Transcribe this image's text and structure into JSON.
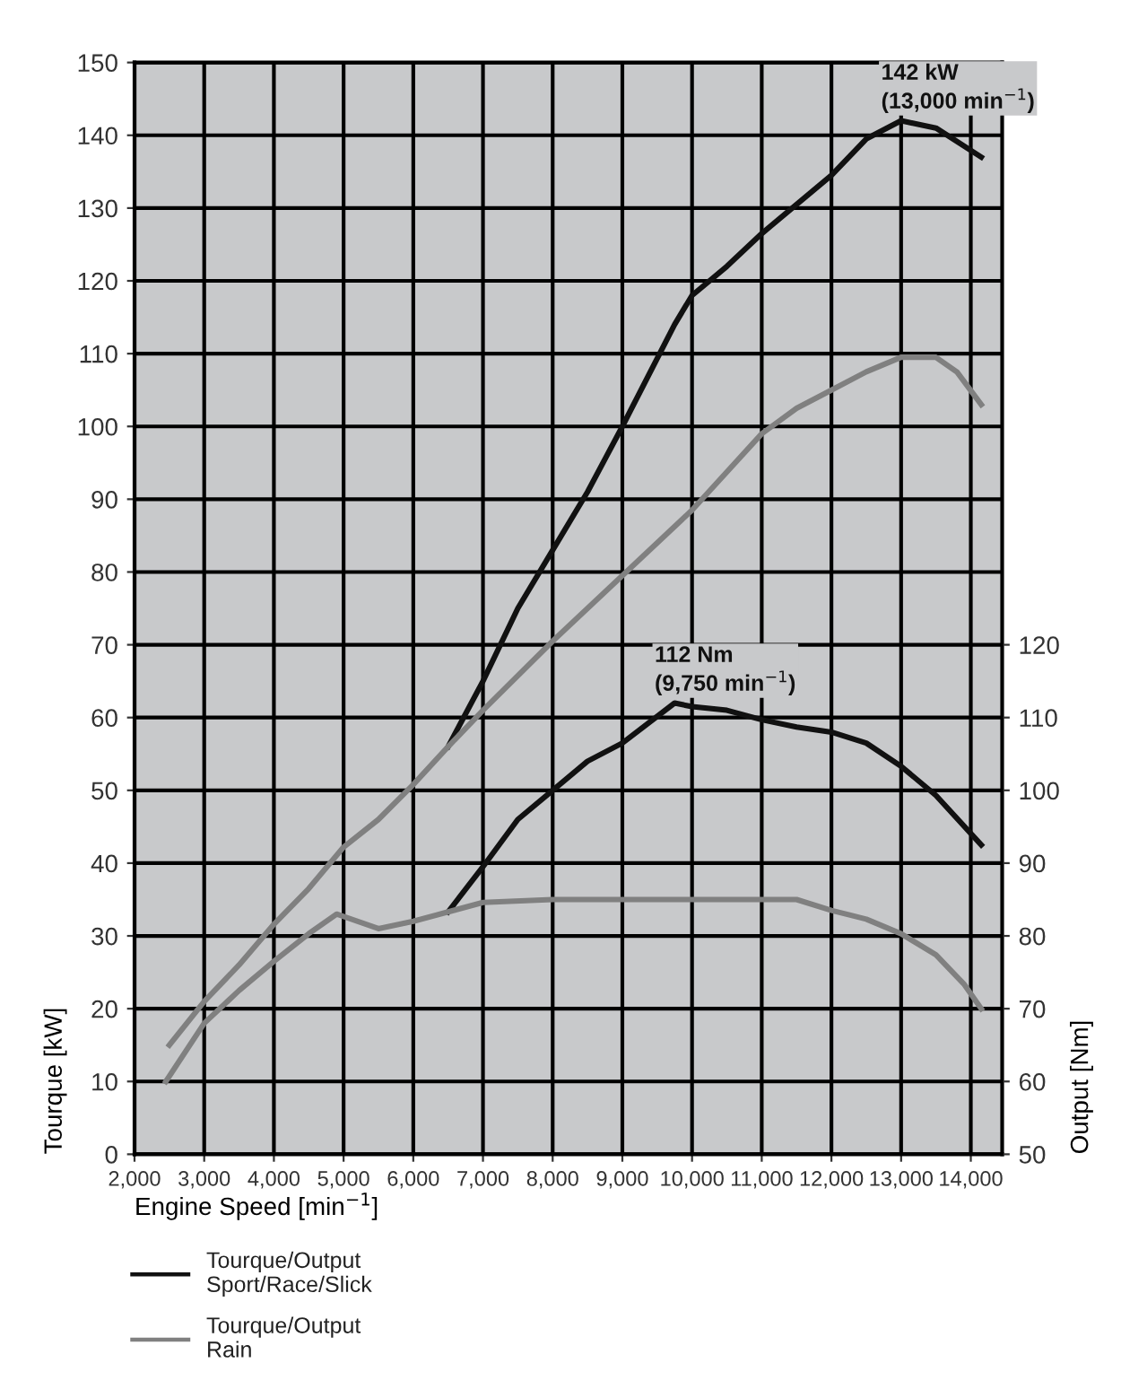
{
  "chart_data": {
    "type": "line",
    "xlabel": "Engine Speed [min$^{−1}$]",
    "ylabel": "Tourque [kW]",
    "y2label": "Output [Nm]",
    "xlim": [
      2000,
      14450
    ],
    "xticks": [
      {
        "value": 2000,
        "label": "2,000"
      },
      {
        "value": 3000,
        "label": "3,000"
      },
      {
        "value": 4000,
        "label": "4,000"
      },
      {
        "value": 5000,
        "label": "5,000"
      },
      {
        "value": 6000,
        "label": "6,000"
      },
      {
        "value": 7000,
        "label": "7,000"
      },
      {
        "value": 8000,
        "label": "8,000"
      },
      {
        "value": 9000,
        "label": "9,000"
      },
      {
        "value": 10000,
        "label": "10,000"
      },
      {
        "value": 11000,
        "label": "11,000"
      },
      {
        "value": 12000,
        "label": "12,000"
      },
      {
        "value": 13000,
        "label": "13,000"
      },
      {
        "value": 14000,
        "label": "14,000"
      }
    ],
    "ylim": [
      0,
      150
    ],
    "yticks": [
      0,
      10,
      20,
      30,
      40,
      50,
      60,
      70,
      80,
      90,
      100,
      110,
      120,
      130,
      140,
      150
    ],
    "y2lim": [
      50,
      200
    ],
    "y2ticks": [
      50,
      60,
      70,
      80,
      90,
      100,
      110,
      120
    ],
    "grid": true,
    "legend": "bottom",
    "line_style": "solid",
    "marker": "none",
    "series": [
      {
        "name": "Tourque/Output\nSport/Race/Slick",
        "color": "#111111",
        "x": [
          6500,
          7000,
          7500,
          8000,
          8500,
          9000,
          9750,
          10000,
          10500,
          11000,
          12000,
          12500,
          13000,
          13500,
          14150
        ],
        "values": [
          56,
          65,
          75,
          83,
          91,
          100,
          114,
          118,
          122,
          126.5,
          134.5,
          139.5,
          142,
          141,
          137
        ]
      },
      {
        "name": "Tourque/Output\nRain",
        "color": "#808080",
        "x": [
          2500,
          3000,
          3500,
          4000,
          4500,
          5000,
          5500,
          6000,
          6500,
          7000,
          8000,
          9000,
          10000,
          11000,
          11500,
          12000,
          12500,
          13000,
          13500,
          13800,
          14150
        ],
        "values": [
          15,
          21,
          26,
          31.6,
          36.5,
          42.2,
          46,
          50.8,
          56,
          61,
          70.5,
          79.5,
          88.5,
          99,
          102.5,
          105,
          107.5,
          109.5,
          109.5,
          107.5,
          103
        ]
      },
      {
        "color": "#111111",
        "axis": "y2",
        "x": [
          6500,
          7000,
          7500,
          8000,
          8500,
          9000,
          9750,
          10000,
          10500,
          11000,
          11500,
          12000,
          12500,
          13000,
          13500,
          14150
        ],
        "values": [
          83.3,
          89.5,
          96,
          100,
          104,
          106.5,
          112,
          111.5,
          111,
          109.7,
          108.7,
          108,
          106.5,
          103.3,
          99.3,
          92.5
        ]
      },
      {
        "color": "#808080",
        "axis": "y2",
        "x": [
          2450,
          3000,
          3500,
          4000,
          4500,
          4900,
          5500,
          6000,
          6500,
          7000,
          8000,
          9000,
          10000,
          11000,
          11500,
          12000,
          12500,
          13000,
          13500,
          13900,
          14150
        ],
        "values": [
          60,
          68,
          72.5,
          76.5,
          80.3,
          83,
          81,
          82,
          83.3,
          84.6,
          85,
          85,
          85,
          85,
          85,
          83.5,
          82.3,
          80.3,
          77.4,
          73.4,
          70
        ]
      }
    ],
    "annotations": [
      {
        "text": "142 kW\n(13,000 min$^{−1}$)",
        "x": 13000,
        "y": 142
      },
      {
        "text": "112 Nm\n(9,750 min$^{−1}$)",
        "x": 9750,
        "y": 62
      }
    ]
  }
}
